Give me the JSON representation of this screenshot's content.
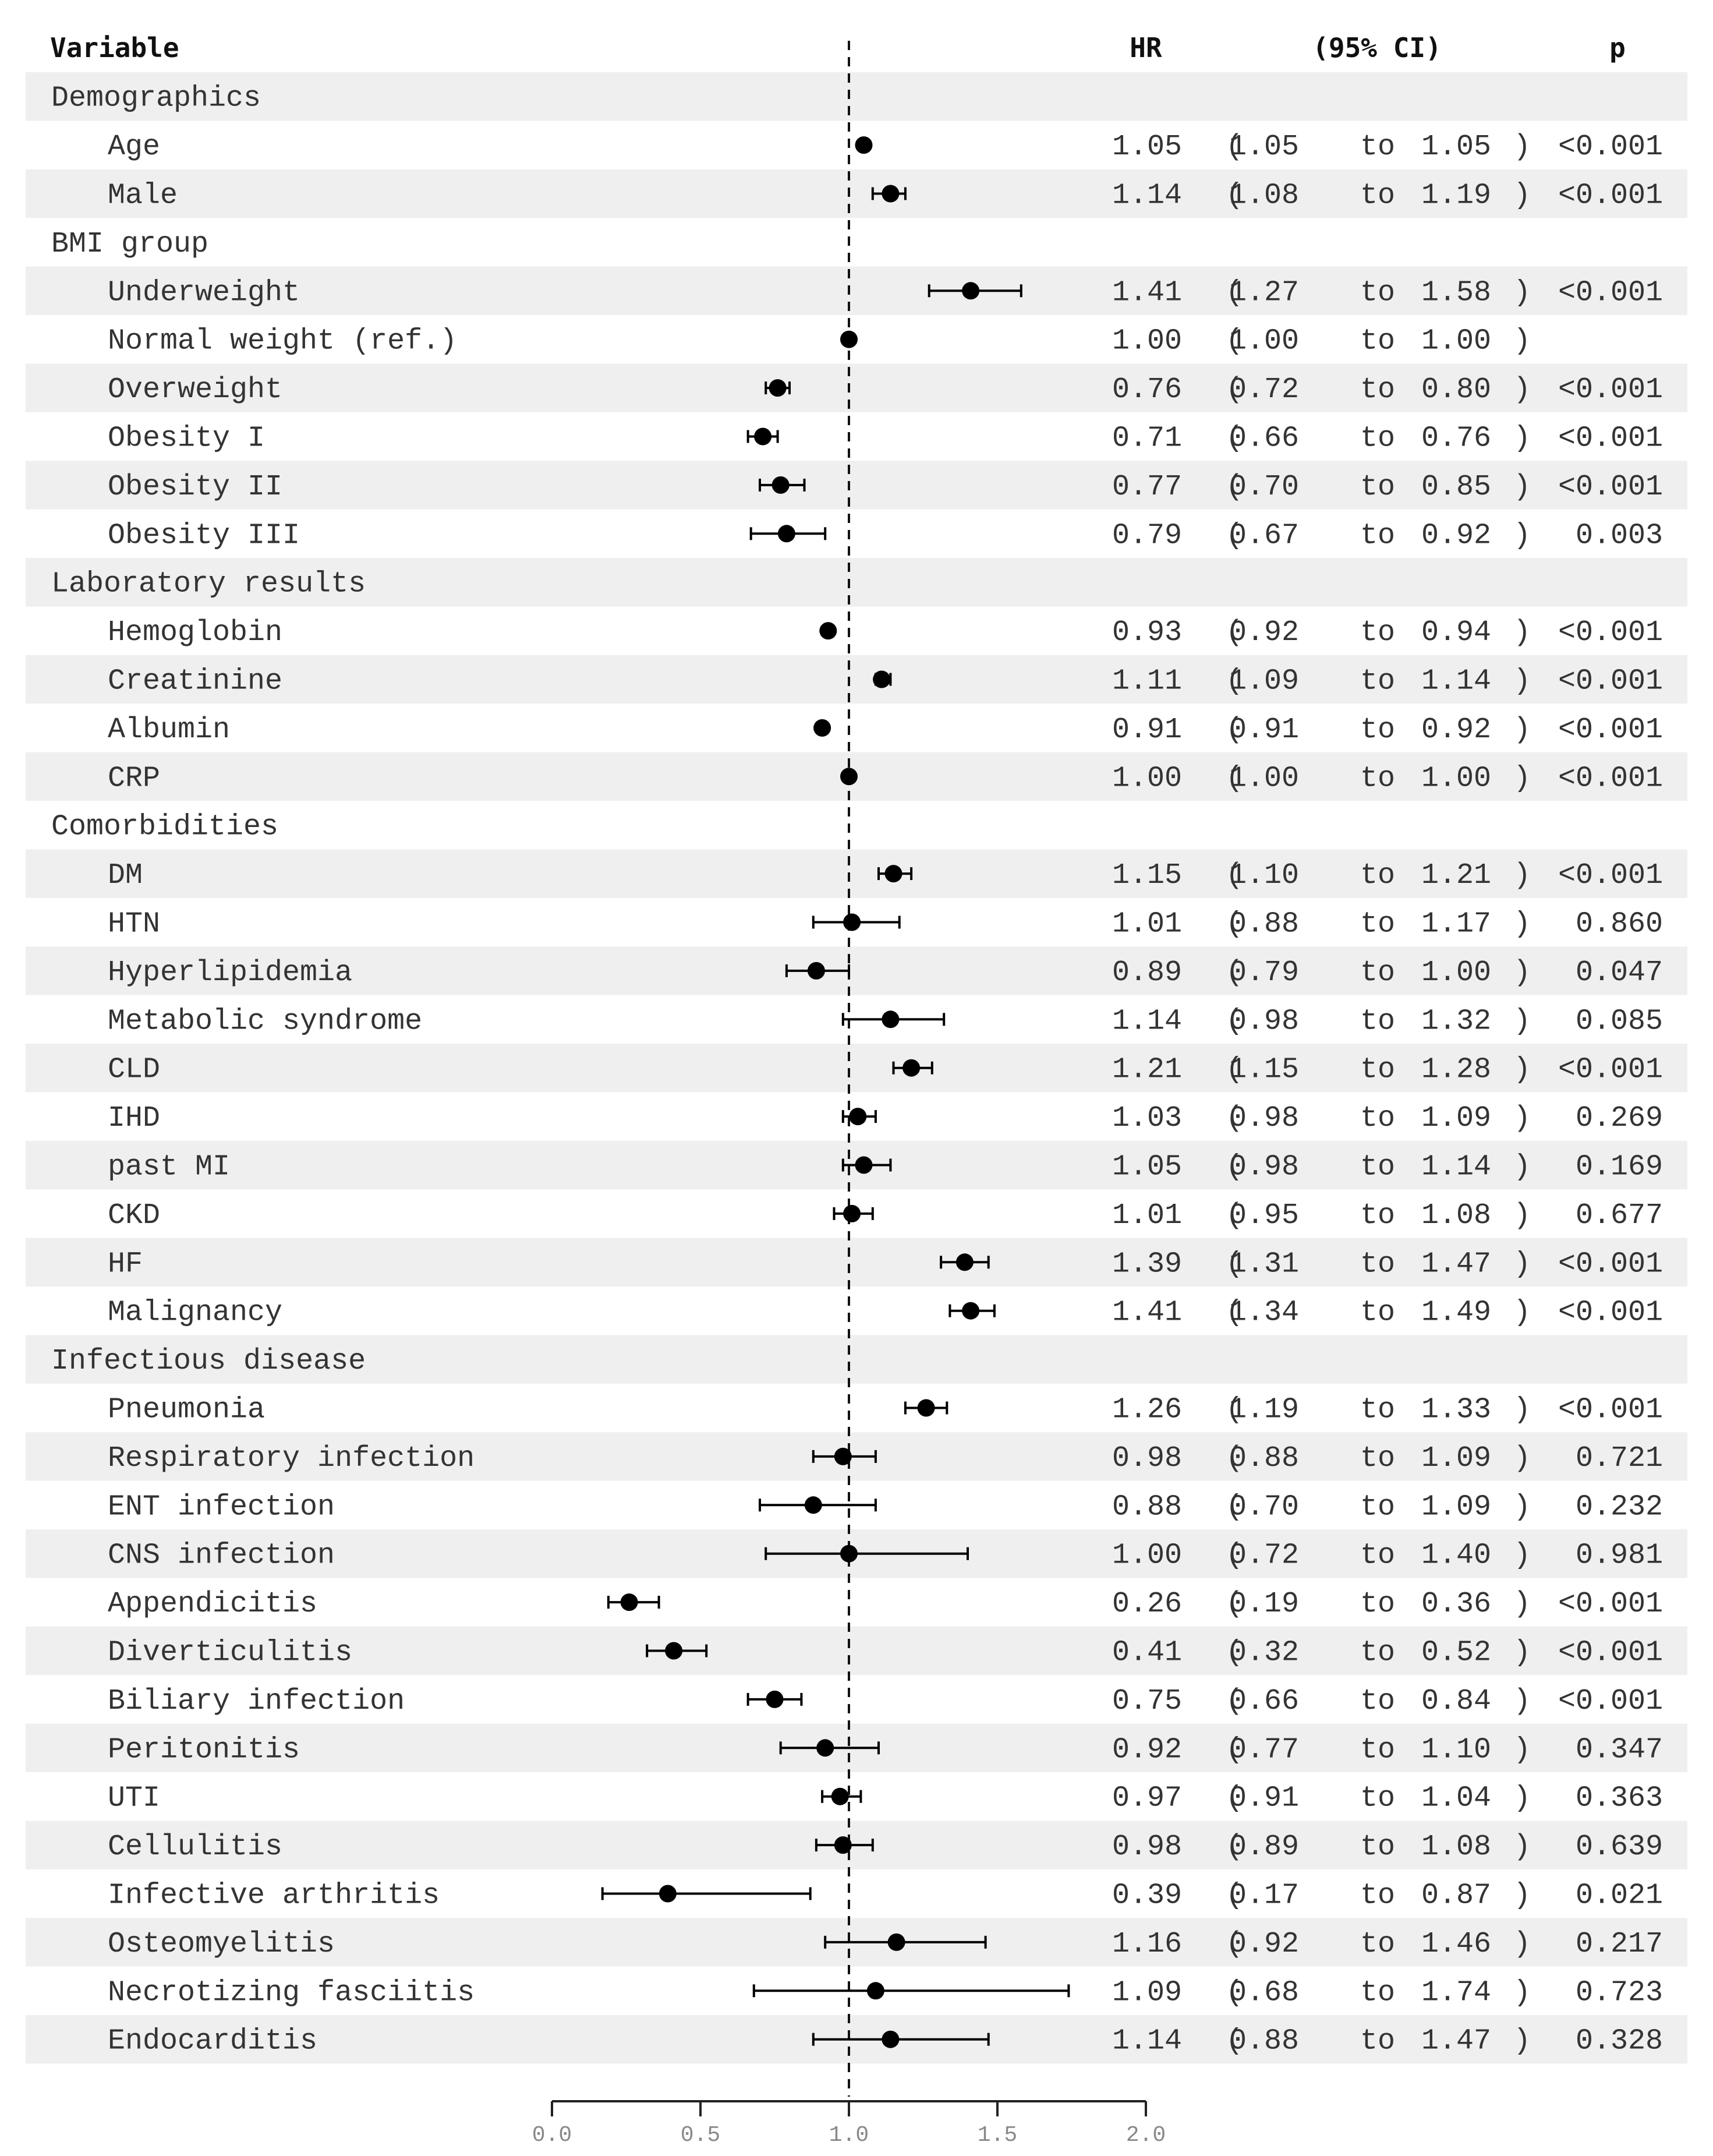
{
  "chart_data": {
    "type": "forest",
    "title": "",
    "columns": {
      "variable": "Variable",
      "hr": "HR",
      "ci": "(95% CI)",
      "p": "p"
    },
    "reference_line": 1.0,
    "xlim": [
      0.0,
      2.0
    ],
    "xticks": [
      "0.0",
      "0.5",
      "1.0",
      "1.5",
      "2.0"
    ],
    "band_color": "#efefef",
    "point_color": "#000000",
    "rows": [
      {
        "kind": "group",
        "label": "Demographics"
      },
      {
        "kind": "item",
        "label": "Age",
        "hr": 1.05,
        "lo": 1.05,
        "hi": 1.05,
        "hr_text": "1.05",
        "lo_text": "1.05",
        "hi_text": "1.05",
        "p": "<0.001"
      },
      {
        "kind": "item",
        "label": "Male",
        "hr": 1.14,
        "lo": 1.08,
        "hi": 1.19,
        "hr_text": "1.14",
        "lo_text": "1.08",
        "hi_text": "1.19",
        "p": "<0.001"
      },
      {
        "kind": "group",
        "label": "BMI group"
      },
      {
        "kind": "item",
        "label": "Underweight",
        "hr": 1.41,
        "lo": 1.27,
        "hi": 1.58,
        "hr_text": "1.41",
        "lo_text": "1.27",
        "hi_text": "1.58",
        "p": "<0.001"
      },
      {
        "kind": "item",
        "label": "Normal weight (ref.)",
        "hr": 1.0,
        "lo": 1.0,
        "hi": 1.0,
        "hr_text": "1.00",
        "lo_text": "1.00",
        "hi_text": "1.00",
        "p": ""
      },
      {
        "kind": "item",
        "label": "Overweight",
        "hr": 0.76,
        "lo": 0.72,
        "hi": 0.8,
        "hr_text": "0.76",
        "lo_text": "0.72",
        "hi_text": "0.80",
        "p": "<0.001"
      },
      {
        "kind": "item",
        "label": "Obesity I",
        "hr": 0.71,
        "lo": 0.66,
        "hi": 0.76,
        "hr_text": "0.71",
        "lo_text": "0.66",
        "hi_text": "0.76",
        "p": "<0.001"
      },
      {
        "kind": "item",
        "label": "Obesity II",
        "hr": 0.77,
        "lo": 0.7,
        "hi": 0.85,
        "hr_text": "0.77",
        "lo_text": "0.70",
        "hi_text": "0.85",
        "p": "<0.001"
      },
      {
        "kind": "item",
        "label": "Obesity III",
        "hr": 0.79,
        "lo": 0.67,
        "hi": 0.92,
        "hr_text": "0.79",
        "lo_text": "0.67",
        "hi_text": "0.92",
        "p": "0.003"
      },
      {
        "kind": "group",
        "label": "Laboratory results"
      },
      {
        "kind": "item",
        "label": "Hemoglobin",
        "hr": 0.93,
        "lo": 0.92,
        "hi": 0.94,
        "hr_text": "0.93",
        "lo_text": "0.92",
        "hi_text": "0.94",
        "p": "<0.001"
      },
      {
        "kind": "item",
        "label": "Creatinine",
        "hr": 1.11,
        "lo": 1.09,
        "hi": 1.14,
        "hr_text": "1.11",
        "lo_text": "1.09",
        "hi_text": "1.14",
        "p": "<0.001"
      },
      {
        "kind": "item",
        "label": "Albumin",
        "hr": 0.91,
        "lo": 0.91,
        "hi": 0.92,
        "hr_text": "0.91",
        "lo_text": "0.91",
        "hi_text": "0.92",
        "p": "<0.001"
      },
      {
        "kind": "item",
        "label": "CRP",
        "hr": 1.0,
        "lo": 1.0,
        "hi": 1.0,
        "hr_text": "1.00",
        "lo_text": "1.00",
        "hi_text": "1.00",
        "p": "<0.001"
      },
      {
        "kind": "group",
        "label": "Comorbidities"
      },
      {
        "kind": "item",
        "label": "DM",
        "hr": 1.15,
        "lo": 1.1,
        "hi": 1.21,
        "hr_text": "1.15",
        "lo_text": "1.10",
        "hi_text": "1.21",
        "p": "<0.001"
      },
      {
        "kind": "item",
        "label": "HTN",
        "hr": 1.01,
        "lo": 0.88,
        "hi": 1.17,
        "hr_text": "1.01",
        "lo_text": "0.88",
        "hi_text": "1.17",
        "p": "0.860"
      },
      {
        "kind": "item",
        "label": "Hyperlipidemia",
        "hr": 0.89,
        "lo": 0.79,
        "hi": 1.0,
        "hr_text": "0.89",
        "lo_text": "0.79",
        "hi_text": "1.00",
        "p": "0.047"
      },
      {
        "kind": "item",
        "label": "Metabolic syndrome",
        "hr": 1.14,
        "lo": 0.98,
        "hi": 1.32,
        "hr_text": "1.14",
        "lo_text": "0.98",
        "hi_text": "1.32",
        "p": "0.085"
      },
      {
        "kind": "item",
        "label": "CLD",
        "hr": 1.21,
        "lo": 1.15,
        "hi": 1.28,
        "hr_text": "1.21",
        "lo_text": "1.15",
        "hi_text": "1.28",
        "p": "<0.001"
      },
      {
        "kind": "item",
        "label": "IHD",
        "hr": 1.03,
        "lo": 0.98,
        "hi": 1.09,
        "hr_text": "1.03",
        "lo_text": "0.98",
        "hi_text": "1.09",
        "p": "0.269"
      },
      {
        "kind": "item",
        "label": "past MI",
        "hr": 1.05,
        "lo": 0.98,
        "hi": 1.14,
        "hr_text": "1.05",
        "lo_text": "0.98",
        "hi_text": "1.14",
        "p": "0.169"
      },
      {
        "kind": "item",
        "label": "CKD",
        "hr": 1.01,
        "lo": 0.95,
        "hi": 1.08,
        "hr_text": "1.01",
        "lo_text": "0.95",
        "hi_text": "1.08",
        "p": "0.677"
      },
      {
        "kind": "item",
        "label": "HF",
        "hr": 1.39,
        "lo": 1.31,
        "hi": 1.47,
        "hr_text": "1.39",
        "lo_text": "1.31",
        "hi_text": "1.47",
        "p": "<0.001"
      },
      {
        "kind": "item",
        "label": "Malignancy",
        "hr": 1.41,
        "lo": 1.34,
        "hi": 1.49,
        "hr_text": "1.41",
        "lo_text": "1.34",
        "hi_text": "1.49",
        "p": "<0.001"
      },
      {
        "kind": "group",
        "label": "Infectious disease"
      },
      {
        "kind": "item",
        "label": "Pneumonia",
        "hr": 1.26,
        "lo": 1.19,
        "hi": 1.33,
        "hr_text": "1.26",
        "lo_text": "1.19",
        "hi_text": "1.33",
        "p": "<0.001"
      },
      {
        "kind": "item",
        "label": "Respiratory infection",
        "hr": 0.98,
        "lo": 0.88,
        "hi": 1.09,
        "hr_text": "0.98",
        "lo_text": "0.88",
        "hi_text": "1.09",
        "p": "0.721"
      },
      {
        "kind": "item",
        "label": "ENT infection",
        "hr": 0.88,
        "lo": 0.7,
        "hi": 1.09,
        "hr_text": "0.88",
        "lo_text": "0.70",
        "hi_text": "1.09",
        "p": "0.232"
      },
      {
        "kind": "item",
        "label": "CNS infection",
        "hr": 1.0,
        "lo": 0.72,
        "hi": 1.4,
        "hr_text": "1.00",
        "lo_text": "0.72",
        "hi_text": "1.40",
        "p": "0.981"
      },
      {
        "kind": "item",
        "label": "Appendicitis",
        "hr": 0.26,
        "lo": 0.19,
        "hi": 0.36,
        "hr_text": "0.26",
        "lo_text": "0.19",
        "hi_text": "0.36",
        "p": "<0.001"
      },
      {
        "kind": "item",
        "label": "Diverticulitis",
        "hr": 0.41,
        "lo": 0.32,
        "hi": 0.52,
        "hr_text": "0.41",
        "lo_text": "0.32",
        "hi_text": "0.52",
        "p": "<0.001"
      },
      {
        "kind": "item",
        "label": "Biliary infection",
        "hr": 0.75,
        "lo": 0.66,
        "hi": 0.84,
        "hr_text": "0.75",
        "lo_text": "0.66",
        "hi_text": "0.84",
        "p": "<0.001"
      },
      {
        "kind": "item",
        "label": "Peritonitis",
        "hr": 0.92,
        "lo": 0.77,
        "hi": 1.1,
        "hr_text": "0.92",
        "lo_text": "0.77",
        "hi_text": "1.10",
        "p": "0.347"
      },
      {
        "kind": "item",
        "label": "UTI",
        "hr": 0.97,
        "lo": 0.91,
        "hi": 1.04,
        "hr_text": "0.97",
        "lo_text": "0.91",
        "hi_text": "1.04",
        "p": "0.363"
      },
      {
        "kind": "item",
        "label": "Cellulitis",
        "hr": 0.98,
        "lo": 0.89,
        "hi": 1.08,
        "hr_text": "0.98",
        "lo_text": "0.89",
        "hi_text": "1.08",
        "p": "0.639"
      },
      {
        "kind": "item",
        "label": "Infective arthritis",
        "hr": 0.39,
        "lo": 0.17,
        "hi": 0.87,
        "hr_text": "0.39",
        "lo_text": "0.17",
        "hi_text": "0.87",
        "p": "0.021"
      },
      {
        "kind": "item",
        "label": "Osteomyelitis",
        "hr": 1.16,
        "lo": 0.92,
        "hi": 1.46,
        "hr_text": "1.16",
        "lo_text": "0.92",
        "hi_text": "1.46",
        "p": "0.217"
      },
      {
        "kind": "item",
        "label": "Necrotizing fasciitis",
        "hr": 1.09,
        "lo": 0.68,
        "hi": 1.74,
        "hr_text": "1.09",
        "lo_text": "0.68",
        "hi_text": "1.74",
        "p": "0.723"
      },
      {
        "kind": "item",
        "label": "Endocarditis",
        "hr": 1.14,
        "lo": 0.88,
        "hi": 1.47,
        "hr_text": "1.14",
        "lo_text": "0.88",
        "hi_text": "1.47",
        "p": "0.328"
      }
    ]
  }
}
